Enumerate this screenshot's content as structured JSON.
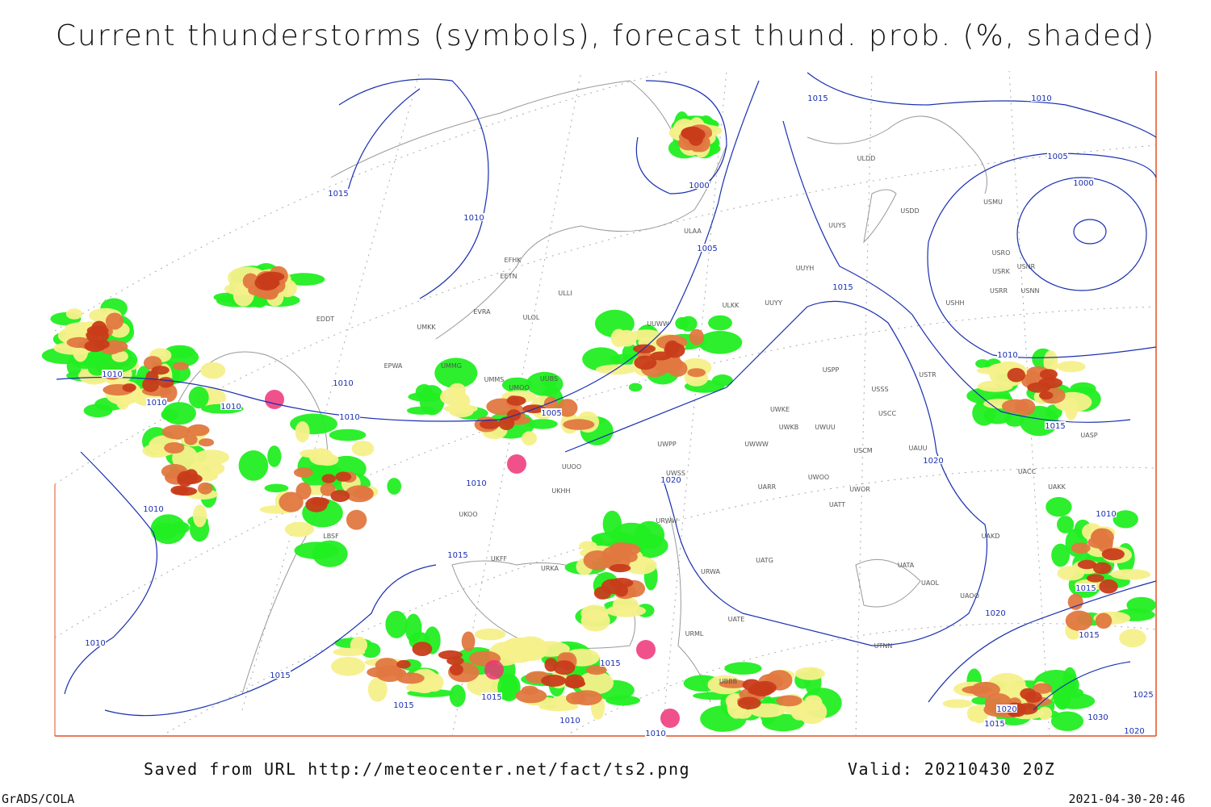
{
  "header": {
    "title": "Current thunderstorms (symbols), forecast thund. prob. (%, shaded)"
  },
  "map": {
    "stations": [
      "EDDT",
      "EPWA",
      "EFHK",
      "EETN",
      "EVRA",
      "ULOL",
      "UMKK",
      "UMMG",
      "UMMS",
      "UMOO",
      "UUBS",
      "ULLI",
      "ULAA",
      "UUWW",
      "ULKK",
      "UUYY",
      "UUYH",
      "UUYS",
      "ULDD",
      "USDD",
      "USMU",
      "USRO",
      "USRK",
      "USNR",
      "USRR",
      "USNN",
      "USHH",
      "USPP",
      "USSS",
      "USTR",
      "USCC",
      "UWKE",
      "UWKB",
      "UWUU",
      "UWPP",
      "UWWW",
      "USCM",
      "UAUU",
      "UWSS",
      "UARR",
      "UWOO",
      "UWOR",
      "UATT",
      "UACC",
      "UAKK",
      "UASP",
      "UAKD",
      "URWW",
      "URWA",
      "UATG",
      "UATA",
      "UAOL",
      "UAOO",
      "UATE",
      "URML",
      "UTNN",
      "UBBB",
      "LBSF",
      "UKOO",
      "UKFF",
      "URKA",
      "UUOO",
      "UKHH"
    ],
    "isobars": [
      1015,
      1010,
      1000,
      1005,
      1015,
      1010,
      1005,
      1000,
      1015,
      1010,
      1010,
      1010,
      1010,
      1010,
      1005,
      1010,
      1020,
      1010,
      1015,
      1020,
      1015,
      1010,
      1010,
      1015,
      1015,
      1015,
      1015,
      1010,
      1010,
      1020,
      1015,
      1015,
      1010,
      1020,
      1015,
      1030,
      1025,
      1020
    ]
  },
  "footer": {
    "source": "Saved from URL http://meteocenter.net/fact/ts2.png",
    "valid": "Valid: 20210430 20Z",
    "software": "GrADS/COLA",
    "timestamp": "2021-04-30-20:46"
  }
}
